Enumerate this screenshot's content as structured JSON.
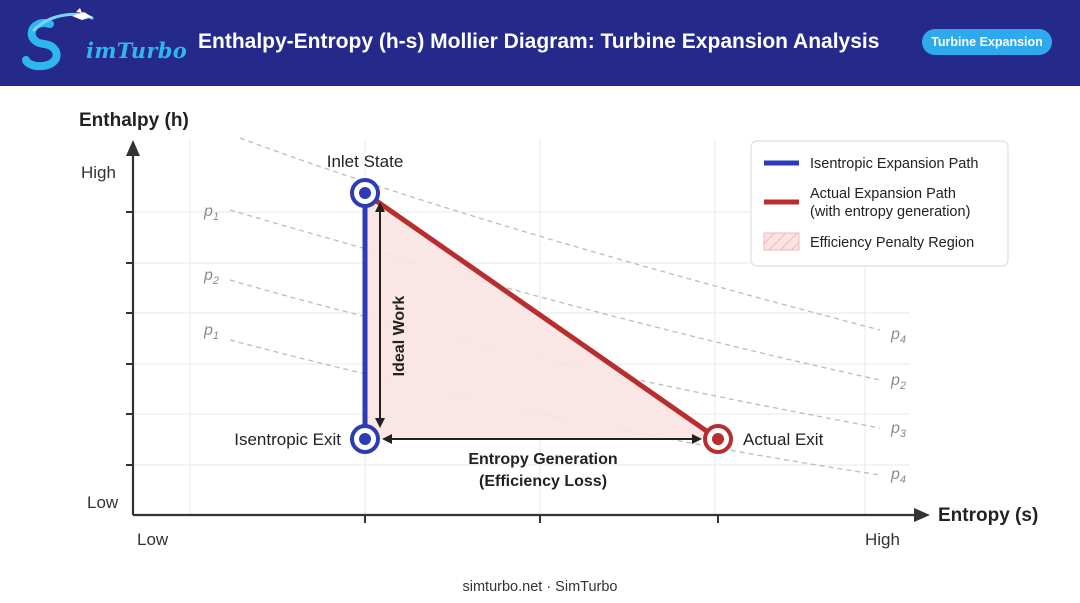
{
  "header": {
    "logo_text": "imTurbo",
    "title": "Enthalpy-Entropy (h-s) Mollier Diagram: Turbine Expansion Analysis",
    "badge": "Turbine Expansion"
  },
  "diagram": {
    "y_axis_label": "Enthalpy (h)",
    "x_axis_label": "Entropy (s)",
    "y_high": "High",
    "y_low": "Low",
    "x_low": "Low",
    "x_high": "High",
    "isobars": [
      {
        "sym": "p",
        "sub": "1"
      },
      {
        "sym": "p",
        "sub": "2"
      },
      {
        "sym": "p",
        "sub": "1"
      },
      {
        "sym": "p",
        "sub": "4"
      },
      {
        "sym": "p",
        "sub": "2"
      },
      {
        "sym": "p",
        "sub": "3"
      },
      {
        "sym": "p",
        "sub": "4"
      }
    ],
    "states": {
      "inlet": "Inlet State",
      "isentropic_exit": "Isentropic Exit",
      "actual_exit": "Actual Exit"
    },
    "ideal_work": "Ideal Work",
    "entropy_generation": [
      "Entropy Generation",
      "(Efficiency Loss)"
    ],
    "colors": {
      "isentropic": "#2b3cb4",
      "actual": "#b82d2d",
      "penalty_fill": "#fbe3e3",
      "header_bg": "#252a8a",
      "accent": "#2fa9ee"
    },
    "legend": {
      "isentropic": "Isentropic Expansion Path",
      "actual_line1": "Actual Expansion Path",
      "actual_line2": "(with entropy generation)",
      "penalty": "Efficiency Penalty Region"
    }
  },
  "footer": "simturbo.net · SimTurbo"
}
